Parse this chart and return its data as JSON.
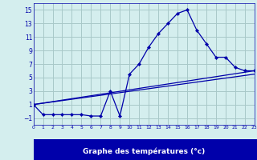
{
  "title": "Graphe des températures (°c)",
  "bg_color": "#d4eeee",
  "grid_color": "#a8c8c8",
  "line_color": "#0000aa",
  "hours": [
    0,
    1,
    2,
    3,
    4,
    5,
    6,
    7,
    8,
    9,
    10,
    11,
    12,
    13,
    14,
    15,
    16,
    17,
    18,
    19,
    20,
    21,
    22,
    23
  ],
  "temps": [
    1,
    -0.5,
    -0.5,
    -0.5,
    -0.5,
    -0.5,
    -0.7,
    -0.7,
    3.0,
    -0.7,
    5.5,
    7,
    9.5,
    11.5,
    13,
    14.5,
    15,
    12,
    10,
    8,
    8,
    6.5,
    6,
    6
  ],
  "line2_x": [
    0,
    23
  ],
  "line2_y": [
    1,
    5.5
  ],
  "line3_x": [
    0,
    23
  ],
  "line3_y": [
    1,
    6.0
  ],
  "ylim": [
    -2,
    16
  ],
  "yticks": [
    -1,
    1,
    3,
    5,
    7,
    9,
    11,
    13,
    15
  ],
  "xlim": [
    0,
    23
  ],
  "xtick_labels": [
    "0",
    "1",
    "2",
    "3",
    "4",
    "5",
    "6",
    "7",
    "8",
    "9",
    "1011",
    "12",
    "13",
    "14",
    "15",
    "16",
    "17",
    "18",
    "19",
    "2021",
    "22",
    "23"
  ]
}
